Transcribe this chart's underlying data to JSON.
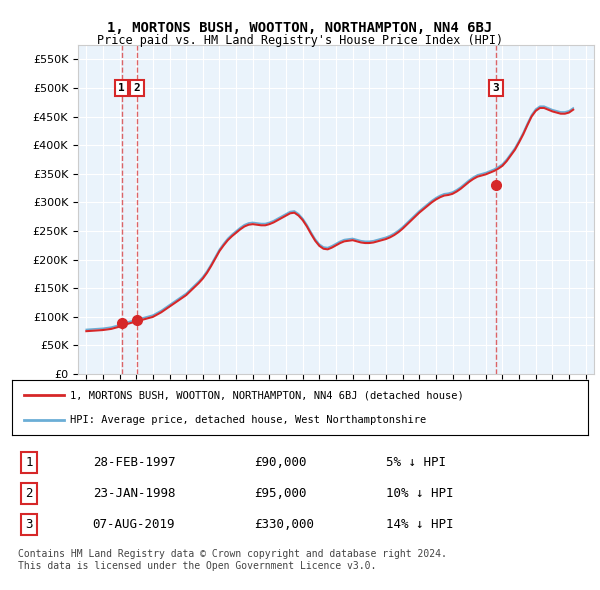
{
  "title": "1, MORTONS BUSH, WOOTTON, NORTHAMPTON, NN4 6BJ",
  "subtitle": "Price paid vs. HM Land Registry's House Price Index (HPI)",
  "legend_line1": "1, MORTONS BUSH, WOOTTON, NORTHAMPTON, NN4 6BJ (detached house)",
  "legend_line2": "HPI: Average price, detached house, West Northamptonshire",
  "footer1": "Contains HM Land Registry data © Crown copyright and database right 2024.",
  "footer2": "This data is licensed under the Open Government Licence v3.0.",
  "transactions": [
    {
      "num": 1,
      "date": "28-FEB-1997",
      "price": 90000,
      "pct": "5%",
      "dir": "↓",
      "x": 1997.12
    },
    {
      "num": 2,
      "date": "23-JAN-1998",
      "price": 95000,
      "pct": "10%",
      "dir": "↓",
      "x": 1998.05
    },
    {
      "num": 3,
      "date": "07-AUG-2019",
      "price": 330000,
      "pct": "14%",
      "dir": "↓",
      "x": 2019.6
    }
  ],
  "hpi_color": "#6baed6",
  "price_color": "#d62728",
  "dashed_color": "#d62728",
  "bg_plot": "#eaf3fb",
  "grid_color": "#ffffff",
  "ylim": [
    0,
    575000
  ],
  "yticks": [
    0,
    50000,
    100000,
    150000,
    200000,
    250000,
    300000,
    350000,
    400000,
    450000,
    500000,
    550000
  ],
  "xlim": [
    1994.5,
    2025.5
  ],
  "hpi_data_x": [
    1995,
    1995.25,
    1995.5,
    1995.75,
    1996,
    1996.25,
    1996.5,
    1996.75,
    1997,
    1997.25,
    1997.5,
    1997.75,
    1998,
    1998.25,
    1998.5,
    1998.75,
    1999,
    1999.25,
    1999.5,
    1999.75,
    2000,
    2000.25,
    2000.5,
    2000.75,
    2001,
    2001.25,
    2001.5,
    2001.75,
    2002,
    2002.25,
    2002.5,
    2002.75,
    2003,
    2003.25,
    2003.5,
    2003.75,
    2004,
    2004.25,
    2004.5,
    2004.75,
    2005,
    2005.25,
    2005.5,
    2005.75,
    2006,
    2006.25,
    2006.5,
    2006.75,
    2007,
    2007.25,
    2007.5,
    2007.75,
    2008,
    2008.25,
    2008.5,
    2008.75,
    2009,
    2009.25,
    2009.5,
    2009.75,
    2010,
    2010.25,
    2010.5,
    2010.75,
    2011,
    2011.25,
    2011.5,
    2011.75,
    2012,
    2012.25,
    2012.5,
    2012.75,
    2013,
    2013.25,
    2013.5,
    2013.75,
    2014,
    2014.25,
    2014.5,
    2014.75,
    2015,
    2015.25,
    2015.5,
    2015.75,
    2016,
    2016.25,
    2016.5,
    2016.75,
    2017,
    2017.25,
    2017.5,
    2017.75,
    2018,
    2018.25,
    2018.5,
    2018.75,
    2019,
    2019.25,
    2019.5,
    2019.75,
    2020,
    2020.25,
    2020.5,
    2020.75,
    2021,
    2021.25,
    2021.5,
    2021.75,
    2022,
    2022.25,
    2022.5,
    2022.75,
    2023,
    2023.25,
    2023.5,
    2023.75,
    2024,
    2024.25
  ],
  "hpi_data_y": [
    78000,
    78500,
    79000,
    79500,
    80000,
    81000,
    82000,
    84000,
    86000,
    88000,
    91000,
    93000,
    95000,
    97000,
    99000,
    101000,
    103000,
    107000,
    111000,
    116000,
    121000,
    126000,
    131000,
    136000,
    141000,
    148000,
    155000,
    162000,
    170000,
    180000,
    192000,
    205000,
    218000,
    228000,
    237000,
    244000,
    250000,
    256000,
    261000,
    264000,
    265000,
    264000,
    263000,
    263000,
    265000,
    268000,
    272000,
    276000,
    280000,
    284000,
    285000,
    280000,
    272000,
    261000,
    248000,
    236000,
    227000,
    222000,
    221000,
    224000,
    228000,
    232000,
    235000,
    236000,
    237000,
    235000,
    233000,
    232000,
    232000,
    233000,
    235000,
    237000,
    239000,
    242000,
    246000,
    251000,
    257000,
    264000,
    271000,
    278000,
    285000,
    291000,
    297000,
    303000,
    308000,
    312000,
    315000,
    316000,
    318000,
    322000,
    327000,
    333000,
    339000,
    344000,
    348000,
    350000,
    352000,
    355000,
    358000,
    362000,
    367000,
    375000,
    385000,
    395000,
    408000,
    422000,
    438000,
    453000,
    463000,
    468000,
    468000,
    465000,
    462000,
    460000,
    458000,
    458000,
    460000,
    465000
  ],
  "price_data_x": [
    1995,
    1995.25,
    1995.5,
    1995.75,
    1996,
    1996.25,
    1996.5,
    1996.75,
    1997,
    1997.25,
    1997.5,
    1997.75,
    1998,
    1998.25,
    1998.5,
    1998.75,
    1999,
    1999.25,
    1999.5,
    1999.75,
    2000,
    2000.25,
    2000.5,
    2000.75,
    2001,
    2001.25,
    2001.5,
    2001.75,
    2002,
    2002.25,
    2002.5,
    2002.75,
    2003,
    2003.25,
    2003.5,
    2003.75,
    2004,
    2004.25,
    2004.5,
    2004.75,
    2005,
    2005.25,
    2005.5,
    2005.75,
    2006,
    2006.25,
    2006.5,
    2006.75,
    2007,
    2007.25,
    2007.5,
    2007.75,
    2008,
    2008.25,
    2008.5,
    2008.75,
    2009,
    2009.25,
    2009.5,
    2009.75,
    2010,
    2010.25,
    2010.5,
    2010.75,
    2011,
    2011.25,
    2011.5,
    2011.75,
    2012,
    2012.25,
    2012.5,
    2012.75,
    2013,
    2013.25,
    2013.5,
    2013.75,
    2014,
    2014.25,
    2014.5,
    2014.75,
    2015,
    2015.25,
    2015.5,
    2015.75,
    2016,
    2016.25,
    2016.5,
    2016.75,
    2017,
    2017.25,
    2017.5,
    2017.75,
    2018,
    2018.25,
    2018.5,
    2018.75,
    2019,
    2019.25,
    2019.5,
    2019.75,
    2020,
    2020.25,
    2020.5,
    2020.75,
    2021,
    2021.25,
    2021.5,
    2021.75,
    2022,
    2022.25,
    2022.5,
    2022.75,
    2023,
    2023.25,
    2023.5,
    2023.75,
    2024,
    2024.25
  ],
  "price_data_y": [
    75000,
    75500,
    76000,
    76500,
    77000,
    78000,
    79000,
    81000,
    83000,
    85000,
    88000,
    90000,
    92000,
    94000,
    96000,
    98000,
    100000,
    104000,
    108000,
    113000,
    118000,
    123000,
    128000,
    133000,
    138000,
    145000,
    152000,
    159000,
    167000,
    177000,
    189000,
    202000,
    215000,
    225000,
    234000,
    241000,
    247000,
    253000,
    258000,
    261000,
    262000,
    261000,
    260000,
    260000,
    262000,
    265000,
    269000,
    273000,
    277000,
    281000,
    282000,
    277000,
    269000,
    258000,
    245000,
    233000,
    224000,
    219000,
    218000,
    221000,
    225000,
    229000,
    232000,
    233000,
    234000,
    232000,
    230000,
    229000,
    229000,
    230000,
    232000,
    234000,
    236000,
    239000,
    243000,
    248000,
    254000,
    261000,
    268000,
    275000,
    282000,
    288000,
    294000,
    300000,
    305000,
    309000,
    312000,
    313000,
    315000,
    319000,
    324000,
    330000,
    336000,
    341000,
    345000,
    347000,
    349000,
    352000,
    355000,
    359000,
    364000,
    372000,
    382000,
    392000,
    405000,
    419000,
    435000,
    450000,
    460000,
    465000,
    465000,
    462000,
    459000,
    457000,
    455000,
    455000,
    457000,
    462000
  ]
}
